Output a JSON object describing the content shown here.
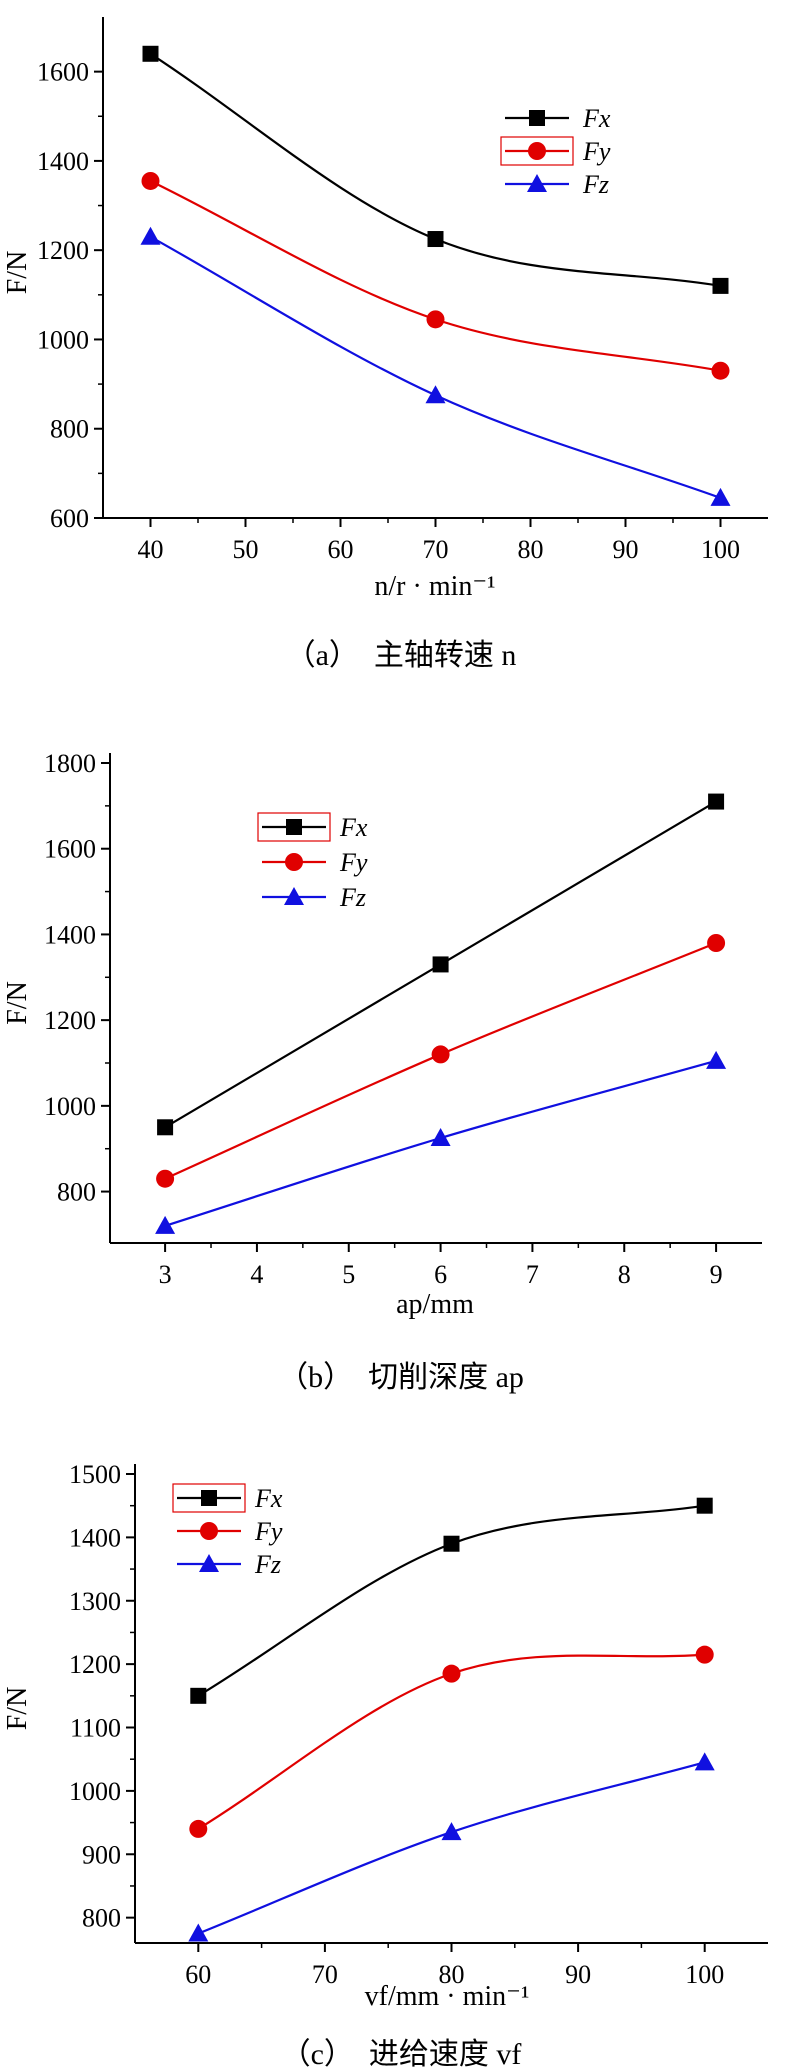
{
  "chart_data": [
    {
      "type": "line",
      "x": [
        40,
        70,
        100
      ],
      "xlim": [
        35,
        105
      ],
      "x_ticks": [
        "40",
        "50",
        "60",
        "70",
        "80",
        "90",
        "100"
      ],
      "ylim": [
        600,
        1700
      ],
      "y_ticks": [
        "600",
        "800",
        "1000",
        "1200",
        "1400",
        "1600"
      ],
      "xlabel": "n/r · min⁻¹",
      "ylabel": "F/N",
      "caption": "（a）　主轴转速 n",
      "legend_position": "top-right",
      "series": [
        {
          "name": "Fx",
          "values": [
            1640,
            1225,
            1120
          ],
          "color": "#000000",
          "marker": "square"
        },
        {
          "name": "Fy",
          "values": [
            1355,
            1045,
            930
          ],
          "color": "#e00000",
          "marker": "circle"
        },
        {
          "name": "Fz",
          "values": [
            1230,
            875,
            645
          ],
          "color": "#1010e0",
          "marker": "triangle"
        }
      ]
    },
    {
      "type": "line",
      "x": [
        3,
        6,
        9
      ],
      "xlim": [
        2.4,
        9.5
      ],
      "x_ticks": [
        "3",
        "4",
        "5",
        "6",
        "7",
        "8",
        "9"
      ],
      "ylim": [
        680,
        1800
      ],
      "y_ticks": [
        "800",
        "1000",
        "1200",
        "1400",
        "1600",
        "1800"
      ],
      "xlabel": "ap/mm",
      "ylabel": "F/N",
      "caption": "（b）　切削深度 ap",
      "legend_position": "top-left",
      "series": [
        {
          "name": "Fx",
          "values": [
            950,
            1330,
            1710
          ],
          "color": "#000000",
          "marker": "square"
        },
        {
          "name": "Fy",
          "values": [
            830,
            1120,
            1380
          ],
          "color": "#e00000",
          "marker": "circle"
        },
        {
          "name": "Fz",
          "values": [
            720,
            925,
            1105
          ],
          "color": "#1010e0",
          "marker": "triangle"
        }
      ]
    },
    {
      "type": "line",
      "x": [
        60,
        80,
        100
      ],
      "xlim": [
        55,
        105
      ],
      "x_ticks": [
        "60",
        "70",
        "80",
        "90",
        "100"
      ],
      "ylim": [
        760,
        1500
      ],
      "y_ticks": [
        "800",
        "900",
        "1000",
        "1100",
        "1200",
        "1300",
        "1400",
        "1500"
      ],
      "xlabel": "vf/mm · min⁻¹",
      "ylabel": "F/N",
      "caption": "（c）　进给速度 vf",
      "legend_position": "top-left",
      "series": [
        {
          "name": "Fx",
          "values": [
            1150,
            1390,
            1450
          ],
          "color": "#000000",
          "marker": "square"
        },
        {
          "name": "Fy",
          "values": [
            940,
            1185,
            1215
          ],
          "color": "#e00000",
          "marker": "circle"
        },
        {
          "name": "Fz",
          "values": [
            775,
            935,
            1045
          ],
          "color": "#1010e0",
          "marker": "triangle"
        }
      ]
    }
  ]
}
